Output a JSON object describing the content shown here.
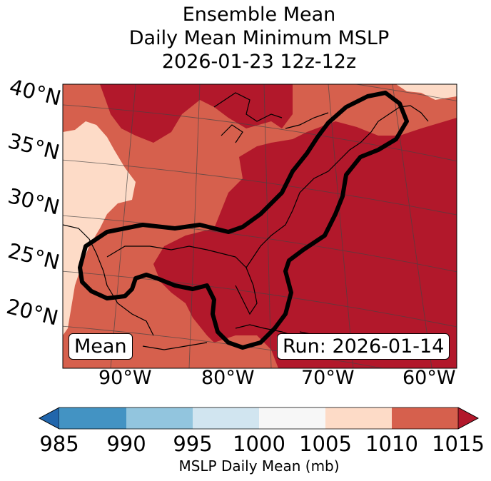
{
  "title": {
    "line1": "Ensemble Mean",
    "line2": "Daily Mean Minimum MSLP",
    "line3": "2026-01-23 12z-12z"
  },
  "map": {
    "lat_labels": [
      "40°N",
      "35°N",
      "30°N",
      "25°N",
      "20°N"
    ],
    "lon_labels": [
      "90°W",
      "80°W",
      "70°W",
      "60°W"
    ],
    "mean_label": "Mean",
    "run_label": "Run: 2026-01-14"
  },
  "colorbar": {
    "ticks": [
      "985",
      "990",
      "995",
      "1000",
      "1005",
      "1010",
      "1015"
    ],
    "label": "MSLP Daily Mean (mb)",
    "colors": [
      "#2166ac",
      "#4393c3",
      "#92c5de",
      "#d1e5f0",
      "#f7f7f7",
      "#fddbc7",
      "#d6604d",
      "#b2182b"
    ]
  }
}
